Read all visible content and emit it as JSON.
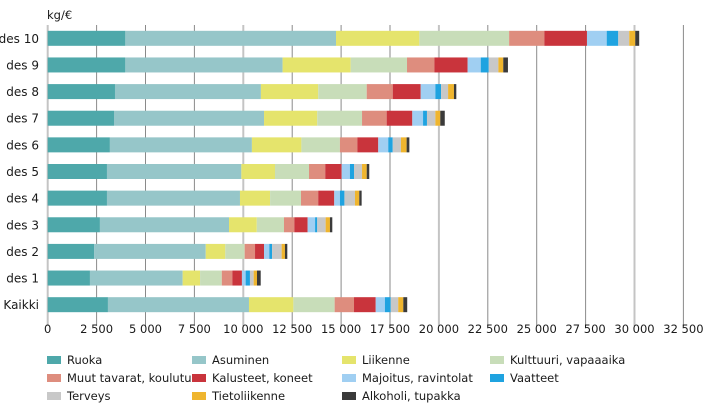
{
  "chart_data": {
    "type": "bar",
    "orientation": "horizontal",
    "stacked": true,
    "title": "",
    "unit_label": "kg/€",
    "xlabel": "",
    "ylabel": "",
    "xlim": [
      0,
      32500
    ],
    "x_ticks": [
      0,
      2500,
      5000,
      7500,
      10000,
      12500,
      15000,
      17500,
      20000,
      22500,
      25000,
      27500,
      30000,
      32500
    ],
    "x_tick_labels": [
      "0",
      "2 500",
      "5 000",
      "7 500",
      "10 000",
      "12 500",
      "15 000",
      "17 500",
      "20 000",
      "22 500",
      "25 000",
      "27 500",
      "30 000",
      "32 500"
    ],
    "grid": true,
    "legend_position": "bottom",
    "categories": [
      "des 10",
      "des 9",
      "des 8",
      "des 7",
      "des 6",
      "des 5",
      "des 4",
      "des 3",
      "des 2",
      "des 1",
      "Kaikki"
    ],
    "series": [
      {
        "name": "Ruoka",
        "color": "#4ea8aa",
        "values": [
          3970,
          3970,
          3440,
          3390,
          3180,
          3030,
          3030,
          2670,
          2370,
          2160,
          3080
        ]
      },
      {
        "name": "Asuminen",
        "color": "#96c6c9",
        "values": [
          10770,
          8040,
          7460,
          7670,
          7260,
          6870,
          6800,
          6600,
          5710,
          4740,
          7210
        ]
      },
      {
        "name": "Liikenne",
        "color": "#e5e46c",
        "values": [
          4260,
          3480,
          2930,
          2720,
          2530,
          1720,
          1540,
          1420,
          1000,
          890,
          2270
        ]
      },
      {
        "name": "Kulttuuri, vapaaaika",
        "color": "#c8ddb9",
        "values": [
          4590,
          2880,
          2480,
          2290,
          1970,
          1740,
          1580,
          1390,
          990,
          1110,
          2110
        ]
      },
      {
        "name": "Muut tavarat, koulutus",
        "color": "#de8d7e",
        "values": [
          1800,
          1400,
          1330,
          1260,
          890,
          830,
          880,
          530,
          530,
          540,
          990
        ]
      },
      {
        "name": "Kalusteet, koneet",
        "color": "#c9343c",
        "values": [
          2180,
          1700,
          1430,
          1310,
          1070,
          840,
          820,
          680,
          460,
          490,
          1110
        ]
      },
      {
        "name": "Majoitus, ravintolat",
        "color": "#a0cff2",
        "values": [
          1010,
          670,
          750,
          550,
          510,
          420,
          290,
          380,
          270,
          190,
          470
        ]
      },
      {
        "name": "Vaatteet",
        "color": "#1fa3e0",
        "values": [
          590,
          410,
          290,
          200,
          230,
          210,
          230,
          110,
          140,
          220,
          300
        ]
      },
      {
        "name": "Terveys",
        "color": "#c8c8c8",
        "values": [
          560,
          490,
          360,
          430,
          420,
          410,
          540,
          430,
          490,
          190,
          380
        ]
      },
      {
        "name": "Tietoliikenne",
        "color": "#efb52e",
        "values": [
          310,
          250,
          300,
          250,
          290,
          240,
          220,
          220,
          170,
          170,
          260
        ]
      },
      {
        "name": "Alkoholi, tupakka",
        "color": "#3a3a3a",
        "values": [
          200,
          240,
          120,
          230,
          140,
          130,
          120,
          120,
          120,
          190,
          200
        ]
      }
    ],
    "legend_order": [
      "Ruoka",
      "Asuminen",
      "Liikenne",
      "Kulttuuri, vapaaaika",
      "Muut tavarat, koulutus",
      "Kalusteet, koneet",
      "Majoitus, ravintolat",
      "Vaatteet",
      "Terveys",
      "Tietoliikenne",
      "Alkoholi, tupakka"
    ]
  },
  "colors": {
    "gridline": "#8a8a8a",
    "gridline_major": "#c4c4c4",
    "axis": "#c4c4c4"
  }
}
